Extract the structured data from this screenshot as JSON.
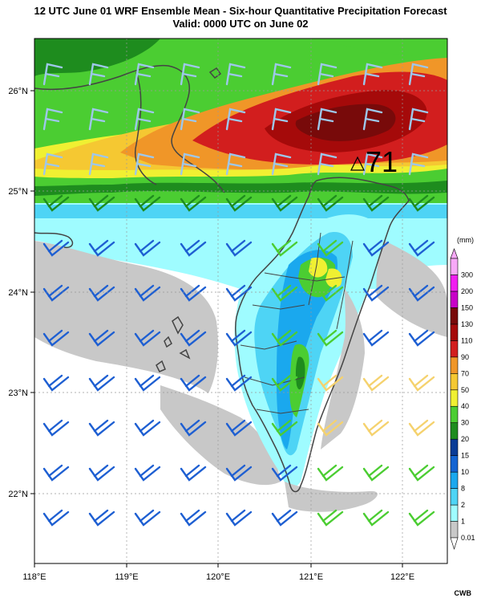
{
  "title": "12 UTC June 01 WRF Ensemble Mean - Six-hour Quantitative Precipitation Forecast",
  "subtitle": "Valid: 0000 UTC on June 02",
  "legend": {
    "unit": "(mm)",
    "levels": [
      "0.01",
      "1",
      "2",
      "8",
      "10",
      "15",
      "20",
      "30",
      "40",
      "50",
      "70",
      "90",
      "110",
      "130",
      "150",
      "200",
      "300"
    ],
    "colors": [
      "#c8c8c8",
      "#9ffcff",
      "#4ed4f5",
      "#1aa8ee",
      "#1464d2",
      "#0a3c96",
      "#1e8c1e",
      "#4bcd32",
      "#f0f032",
      "#f5c832",
      "#f09628",
      "#d21e1e",
      "#a50a0a",
      "#780a0a",
      "#c800c8",
      "#f01ef0",
      "#f7a9f7"
    ]
  },
  "axes": {
    "lon_labels": [
      "118°E",
      "119°E",
      "120°E",
      "121°E",
      "122°E"
    ],
    "lat_labels": [
      "26°N",
      "25°N",
      "24°N",
      "23°N",
      "22°N"
    ]
  },
  "max_label": "71",
  "credit": "CWB",
  "colors": {
    "frame": "#000000",
    "grid": "#999999"
  }
}
